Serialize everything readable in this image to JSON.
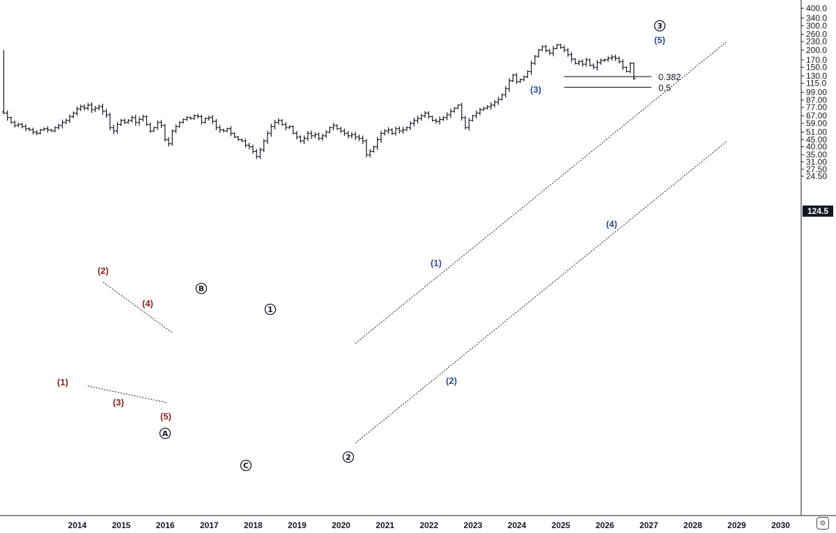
{
  "chart_data": {
    "type": "ohlc",
    "scale": "log",
    "grid": false,
    "ylim": [
      22,
      420
    ],
    "y_ticks": [
      "400.0",
      "340.0",
      "300.0",
      "260.0",
      "230.0",
      "200.0",
      "170.0",
      "150.0",
      "130.0",
      "115.0",
      "99.00",
      "87.00",
      "77.00",
      "67.00",
      "59.00",
      "51.00",
      "45.00",
      "40.00",
      "35.00",
      "31.00",
      "27.50",
      "24.50"
    ],
    "x_ticks": [
      "2014",
      "2015",
      "2016",
      "2017",
      "2018",
      "2019",
      "2020",
      "2021",
      "2022",
      "2023",
      "2024",
      "2025",
      "2026",
      "2027",
      "2028",
      "2029",
      "2030"
    ],
    "last_price": "124.5",
    "bars_monthly_close_from_2013_03": [
      70,
      65,
      60,
      57,
      58,
      56,
      54,
      53,
      51,
      50,
      53,
      54,
      53,
      52,
      55,
      57,
      60,
      62,
      66,
      70,
      75,
      78,
      76,
      80,
      74,
      76,
      78,
      72,
      68,
      55,
      52,
      58,
      62,
      60,
      62,
      65,
      60,
      63,
      66,
      58,
      52,
      55,
      60,
      57,
      45,
      42,
      52,
      56,
      60,
      63,
      65,
      64,
      67,
      66,
      60,
      64,
      65,
      61,
      55,
      53,
      52,
      54,
      50,
      47,
      45,
      44,
      41,
      40,
      37,
      34,
      38,
      44,
      50,
      56,
      60,
      62,
      58,
      55,
      56,
      50,
      47,
      44,
      46,
      50,
      48,
      49,
      46,
      48,
      51,
      55,
      57,
      54,
      52,
      50,
      48,
      49,
      47,
      46,
      44,
      35,
      37,
      40,
      45,
      50,
      52,
      53,
      50,
      54,
      52,
      53,
      55,
      59,
      62,
      64,
      67,
      70,
      66,
      62,
      61,
      63,
      65,
      68,
      72,
      76,
      80,
      65,
      55,
      62,
      67,
      70,
      74,
      76,
      78,
      80,
      84,
      88,
      95,
      105,
      120,
      132,
      118,
      122,
      128,
      140,
      160,
      180,
      200,
      212,
      198,
      190,
      205,
      218,
      208,
      200,
      185,
      172,
      160,
      165,
      158,
      170,
      155,
      150,
      162,
      168,
      170,
      175,
      178,
      174,
      165,
      150,
      140,
      160,
      124.5
    ],
    "wave_labels": {
      "red": [
        "(1)",
        "(2)",
        "(3)",
        "(4)",
        "(5)"
      ],
      "blue": [
        "(1)",
        "(2)",
        "(3)",
        "(4)",
        "(5)"
      ],
      "circled": [
        "Ⓐ",
        "Ⓑ",
        "Ⓒ",
        "①",
        "②",
        "③"
      ]
    },
    "fib_levels": [
      {
        "label": "0.382",
        "value": 128.5
      },
      {
        "label": "0.5",
        "value": 107.5
      }
    ],
    "colors": {
      "bars": "#131722",
      "red_wave": "#8b1c1c",
      "blue_wave": "#2a4a9a",
      "lines": "#131722"
    }
  },
  "settings_icon": "settings-icon"
}
